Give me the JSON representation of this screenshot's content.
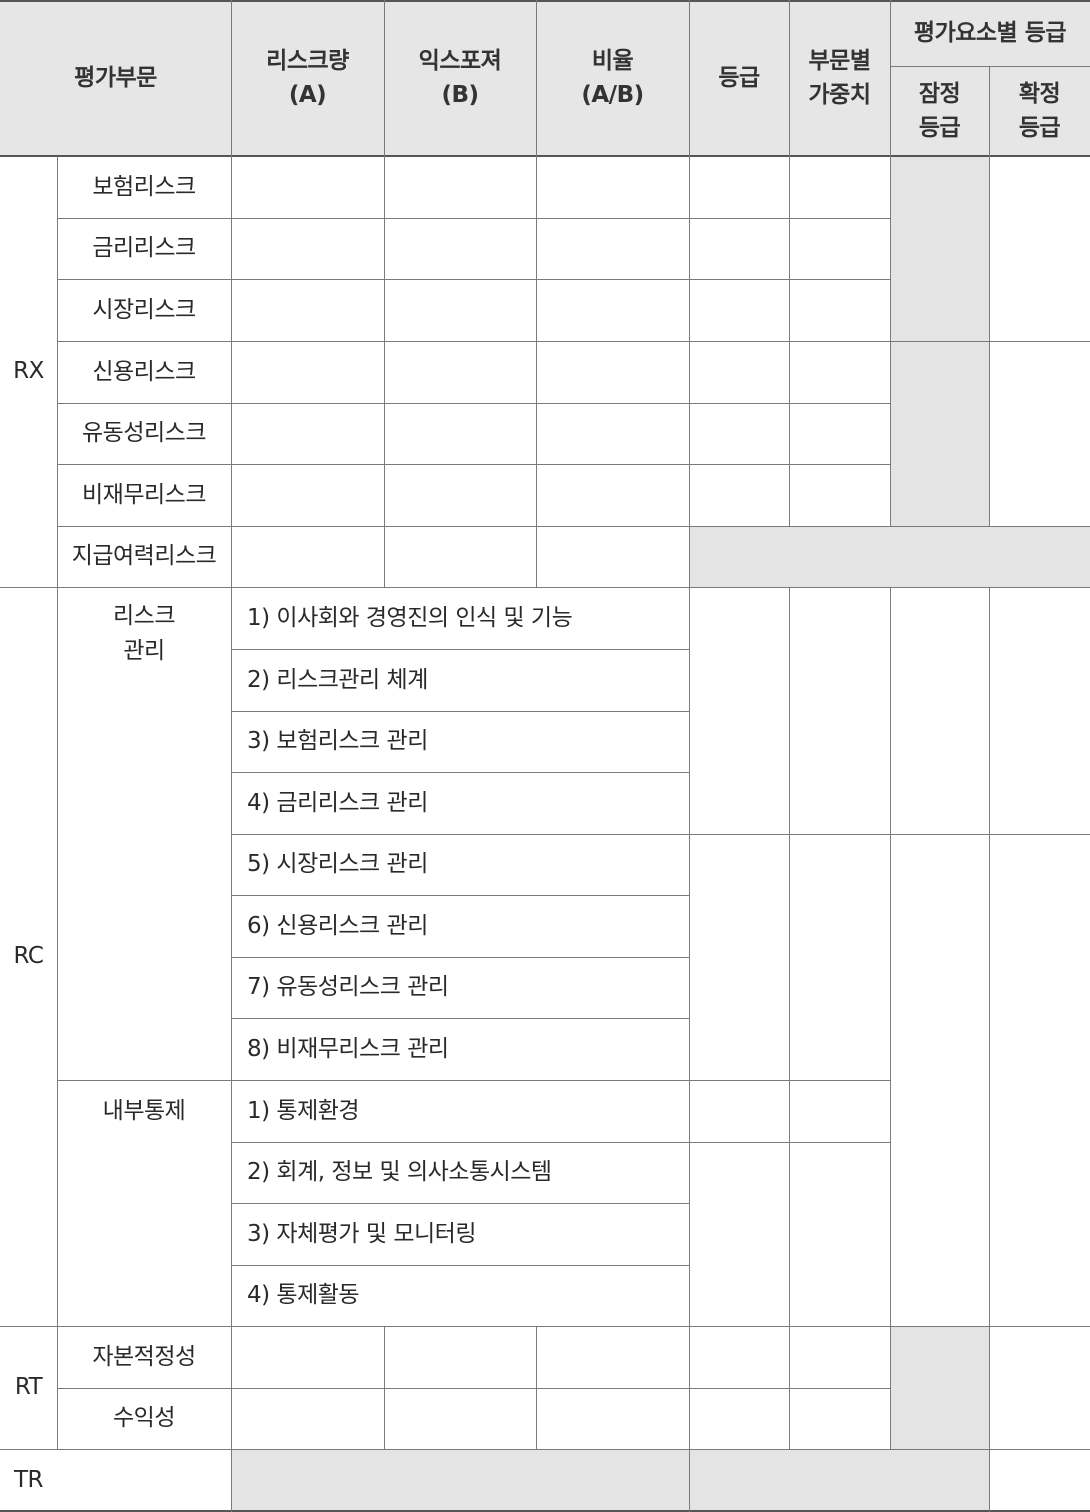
{
  "header": {
    "category": "평가부문",
    "risk_amount": "리스크량\n(A)",
    "exposure": "익스포져\n(B)",
    "ratio": "비율\n(A/B)",
    "grade": "등급",
    "weight": "부문별\n가중치",
    "element_grade": "평가요소별 등급",
    "provisional": "잠정\n등급",
    "final": "확정\n등급"
  },
  "rx": {
    "label": "RX",
    "items": [
      "보험리스크",
      "금리리스크",
      "시장리스크",
      "신용리스크",
      "유동성리스크",
      "비재무리스크",
      "지급여력리스크"
    ]
  },
  "rc": {
    "label": "RC",
    "risk_mgmt_label": "리스크\n관리",
    "risk_mgmt_items": [
      "1) 이사회와 경영진의 인식 및 기능",
      "2) 리스크관리 체계",
      "3) 보험리스크 관리",
      "4) 금리리스크 관리",
      "5) 시장리스크 관리",
      "6) 신용리스크 관리",
      "7) 유동성리스크 관리",
      "8) 비재무리스크 관리"
    ],
    "internal_label": "내부통제",
    "internal_items": [
      "1) 통제환경",
      "2) 회계, 정보 및 의사소통시스템",
      "3) 자체평가 및 모니터링",
      "4) 통제활동"
    ]
  },
  "rt": {
    "label": "RT",
    "items": [
      "자본적정성",
      "수익성"
    ]
  },
  "tr": {
    "label": "TR"
  }
}
